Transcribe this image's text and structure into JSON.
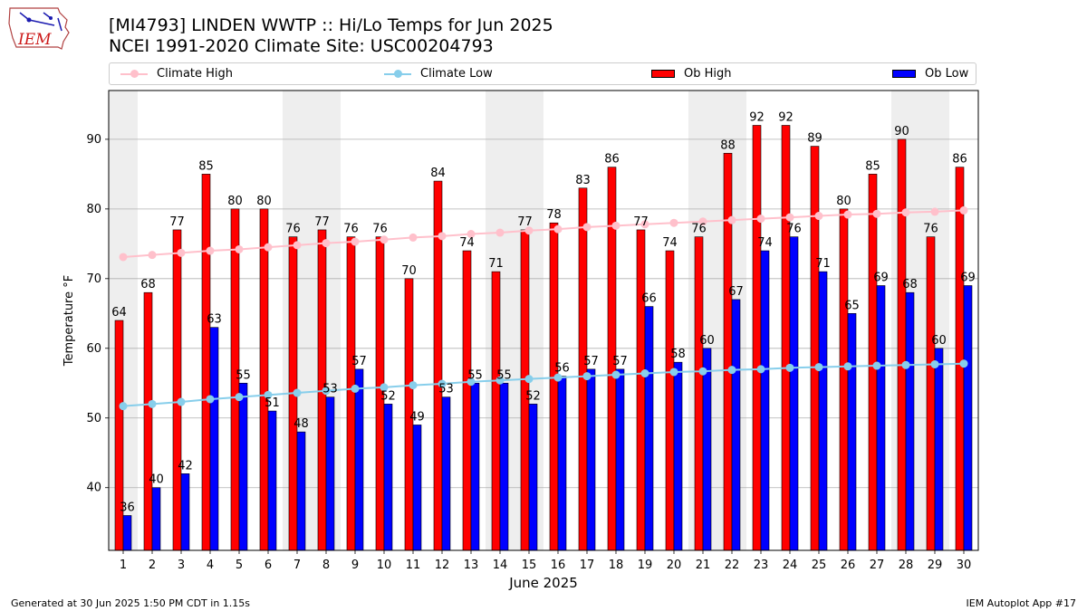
{
  "header": {
    "title": "[MI4793] LINDEN WWTP :: Hi/Lo Temps for Jun 2025",
    "subtitle": "NCEI 1991-2020 Climate Site: USC00204793",
    "logo_text": "IEM"
  },
  "legend": {
    "placement": "top, above plot",
    "items": [
      {
        "label": "Climate High",
        "kind": "line-marker",
        "color": "#ffc0cb"
      },
      {
        "label": "Climate Low",
        "kind": "line-marker",
        "color": "#87ceeb"
      },
      {
        "label": "Ob High",
        "kind": "bar",
        "color": "#ff0000"
      },
      {
        "label": "Ob Low",
        "kind": "bar",
        "color": "#0000ff"
      }
    ]
  },
  "footer": {
    "generated": "Generated at 30 Jun 2025 1:50 PM CDT in 1.15s",
    "app": "IEM Autoplot App #17"
  },
  "chart_data": {
    "type": "bar",
    "xlabel": "June 2025",
    "ylabel": "Temperature °F",
    "ylim": [
      31,
      97
    ],
    "yticks": [
      40,
      50,
      60,
      70,
      80,
      90
    ],
    "grid": "horizontal",
    "weekend_shading": true,
    "weekend_days": [
      1,
      7,
      8,
      14,
      15,
      21,
      22,
      28,
      29
    ],
    "shade_color": "#eeeeee",
    "categories": [
      "1",
      "2",
      "3",
      "4",
      "5",
      "6",
      "7",
      "8",
      "9",
      "10",
      "11",
      "12",
      "13",
      "14",
      "15",
      "16",
      "17",
      "18",
      "19",
      "20",
      "21",
      "22",
      "23",
      "24",
      "25",
      "26",
      "27",
      "28",
      "29",
      "30"
    ],
    "series": [
      {
        "name": "Ob High",
        "type": "bar",
        "color": "#ff0000",
        "values": [
          64,
          68,
          77,
          85,
          80,
          80,
          76,
          77,
          76,
          76,
          70,
          84,
          74,
          71,
          77,
          78,
          83,
          86,
          77,
          74,
          76,
          88,
          92,
          92,
          89,
          80,
          85,
          90,
          76,
          86
        ]
      },
      {
        "name": "Ob Low",
        "type": "bar",
        "color": "#0000ff",
        "values": [
          36,
          40,
          42,
          63,
          55,
          51,
          48,
          53,
          57,
          52,
          49,
          53,
          55,
          55,
          52,
          56,
          57,
          57,
          66,
          58,
          60,
          67,
          74,
          76,
          71,
          65,
          69,
          68,
          60,
          69
        ]
      },
      {
        "name": "Climate High",
        "type": "line",
        "color": "#ffc0cb",
        "values": [
          73.1,
          73.4,
          73.7,
          74.0,
          74.2,
          74.5,
          74.8,
          75.1,
          75.3,
          75.6,
          75.9,
          76.1,
          76.4,
          76.6,
          76.9,
          77.1,
          77.4,
          77.6,
          77.8,
          78.0,
          78.2,
          78.4,
          78.6,
          78.8,
          79.0,
          79.2,
          79.3,
          79.5,
          79.6,
          79.8
        ]
      },
      {
        "name": "Climate Low",
        "type": "line",
        "color": "#87ceeb",
        "values": [
          51.7,
          52.0,
          52.3,
          52.7,
          53.0,
          53.3,
          53.6,
          53.9,
          54.2,
          54.4,
          54.7,
          54.9,
          55.2,
          55.4,
          55.6,
          55.8,
          56.0,
          56.2,
          56.4,
          56.6,
          56.7,
          56.9,
          57.0,
          57.2,
          57.3,
          57.4,
          57.5,
          57.6,
          57.7,
          57.8
        ]
      }
    ]
  }
}
